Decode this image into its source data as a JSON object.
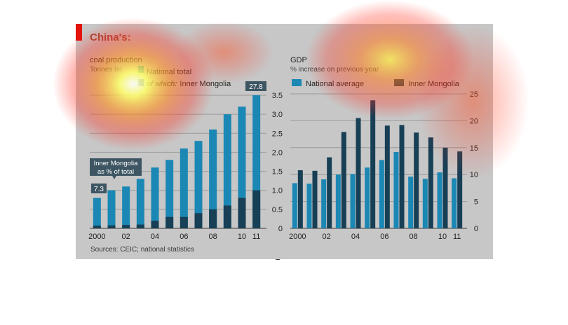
{
  "page_title": "China's:",
  "sources": "Sources: CEIC; national statistics",
  "colors": {
    "frame": "#c7c7c7",
    "accent_red": "#e3120b",
    "national_blue": "#1b87b4",
    "inner_mongolia_dark": "#173f55",
    "heat_red": "#ff2a1a",
    "heat_yellow": "#ffff66"
  },
  "chart_data": [
    {
      "type": "bar",
      "title": "coal production",
      "subtitle": "Tonnes bn",
      "categories": [
        "2000",
        "01",
        "02",
        "03",
        "04",
        "05",
        "06",
        "07",
        "08",
        "09",
        "10",
        "11"
      ],
      "tick_labels": [
        "2000",
        "02",
        "04",
        "06",
        "08",
        "10",
        "11"
      ],
      "series": [
        {
          "name": "National total",
          "values": [
            0.8,
            1.0,
            1.1,
            1.3,
            1.6,
            1.8,
            2.1,
            2.3,
            2.6,
            3.0,
            3.2,
            3.5
          ]
        },
        {
          "name": "Inner Mongolia",
          "values": [
            0.07,
            0.08,
            0.09,
            0.1,
            0.2,
            0.3,
            0.3,
            0.4,
            0.5,
            0.6,
            0.8,
            1.0
          ]
        }
      ],
      "legend": [
        "National total",
        "Inner Mongolia"
      ],
      "legend_prefix": "of which:",
      "ylim": [
        0,
        3.5
      ],
      "yticks": [
        0,
        0.5,
        1.0,
        1.5,
        2.0,
        2.5,
        3.0,
        3.5
      ],
      "grid": true,
      "annotations": {
        "callout": "Inner Mongolia as % of total",
        "callout_line1": "Inner Mongolia",
        "callout_line2": "as % of total",
        "first_value": "7.3",
        "last_value": "27.8"
      }
    },
    {
      "type": "bar",
      "title": "GDP",
      "subtitle": "% increase on previous year",
      "categories": [
        "2000",
        "01",
        "02",
        "03",
        "04",
        "05",
        "06",
        "07",
        "08",
        "09",
        "10",
        "11"
      ],
      "tick_labels": [
        "2000",
        "02",
        "04",
        "06",
        "08",
        "10",
        "11"
      ],
      "series": [
        {
          "name": "National average",
          "values": [
            8.4,
            8.3,
            9.1,
            10.0,
            10.1,
            11.3,
            12.7,
            14.2,
            9.6,
            9.2,
            10.4,
            9.3
          ]
        },
        {
          "name": "Inner Mongolia",
          "values": [
            10.8,
            10.7,
            13.2,
            17.9,
            20.5,
            23.8,
            19.1,
            19.2,
            17.8,
            16.9,
            15.0,
            14.3
          ]
        }
      ],
      "legend": [
        "National average",
        "Inner Mongolia"
      ],
      "ylim": [
        0,
        25
      ],
      "yticks": [
        0,
        5,
        10,
        15,
        20,
        25
      ],
      "grid": true
    }
  ]
}
